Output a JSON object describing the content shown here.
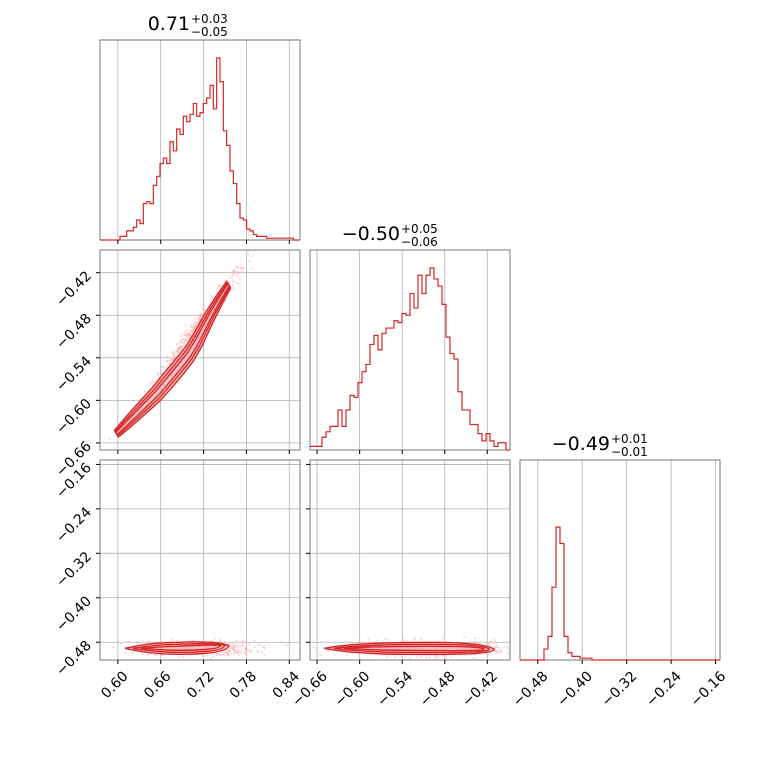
{
  "chart_data": {
    "type": "corner",
    "grid": true,
    "colors": {
      "series": "#d62728",
      "fill": "#f4b3b5",
      "scatter": "#f5b5b6",
      "grid": "#b0b0b0",
      "frame": "#777777"
    },
    "parameters": [
      {
        "title": {
          "median": "0.71",
          "plus": "+0.03",
          "minus": "−0.05"
        },
        "range": [
          0.575,
          0.855
        ],
        "ticks": [
          {
            "value": 0.6,
            "label": "0.60"
          },
          {
            "value": 0.66,
            "label": "0.66"
          },
          {
            "value": 0.72,
            "label": "0.72"
          },
          {
            "value": 0.78,
            "label": "0.78"
          },
          {
            "value": 0.84,
            "label": "0.84"
          }
        ],
        "histogram": [
          0,
          0,
          0,
          0,
          0,
          0,
          0.02,
          0.02,
          0.05,
          0.05,
          0.07,
          0.11,
          0.09,
          0.2,
          0.21,
          0.2,
          0.3,
          0.35,
          0.42,
          0.45,
          0.42,
          0.54,
          0.49,
          0.61,
          0.58,
          0.68,
          0.65,
          0.69,
          0.75,
          0.68,
          0.7,
          0.75,
          0.78,
          0.85,
          0.72,
          1.0,
          0.87,
          0.6,
          0.52,
          0.38,
          0.31,
          0.2,
          0.12,
          0.11,
          0.06,
          0.05,
          0.03,
          0.02,
          0.02,
          0.02,
          0.01,
          0.01,
          0.01,
          0.01,
          0.01,
          0.01,
          0.01,
          0.01,
          0,
          0
        ]
      },
      {
        "title": {
          "median": "−0.50",
          "plus": "+0.05",
          "minus": "−0.06"
        },
        "range": [
          -0.67,
          -0.388
        ],
        "ticks": [
          {
            "value": -0.66,
            "label": "−0.66"
          },
          {
            "value": -0.6,
            "label": "−0.60"
          },
          {
            "value": -0.54,
            "label": "−0.54"
          },
          {
            "value": -0.48,
            "label": "−0.48"
          },
          {
            "value": -0.42,
            "label": "−0.42"
          }
        ],
        "histogram": [
          0.02,
          0.02,
          0.02,
          0.07,
          0.1,
          0.13,
          0.13,
          0.22,
          0.13,
          0.22,
          0.3,
          0.29,
          0.37,
          0.43,
          0.47,
          0.58,
          0.63,
          0.55,
          0.64,
          0.67,
          0.67,
          0.71,
          0.7,
          0.75,
          0.74,
          0.86,
          0.78,
          0.96,
          0.86,
          0.96,
          1.0,
          0.94,
          0.9,
          0.8,
          0.62,
          0.53,
          0.5,
          0.32,
          0.22,
          0.22,
          0.14,
          0.14,
          0.09,
          0.05,
          0.09,
          0.05,
          0.02,
          0.04,
          0.04,
          0.0
        ]
      },
      {
        "title": {
          "median": "−0.49",
          "plus": "+0.01",
          "minus": "−0.01"
        },
        "range": [
          -0.512,
          -0.152
        ],
        "ticks": [
          {
            "value": -0.48,
            "label": "−0.48"
          },
          {
            "value": -0.4,
            "label": "−0.40"
          },
          {
            "value": -0.32,
            "label": "−0.32"
          },
          {
            "value": -0.24,
            "label": "−0.24"
          },
          {
            "value": -0.16,
            "label": "−0.16"
          }
        ],
        "histogram": [
          0,
          0,
          0,
          0,
          0,
          0,
          0.06,
          0.13,
          0.4,
          0.73,
          0.64,
          0.13,
          0.04,
          0.02,
          0.02,
          0.01,
          0.01,
          0.01,
          0,
          0,
          0,
          0,
          0,
          0,
          0,
          0,
          0,
          0,
          0,
          0,
          0,
          0,
          0,
          0,
          0,
          0,
          0,
          0,
          0,
          0,
          0,
          0,
          0,
          0,
          0,
          0,
          0,
          0,
          0,
          0
        ]
      }
    ],
    "contours_p1_p0": [
      {
        "x": 0.598,
        "y": -0.647
      },
      {
        "x": 0.61,
        "y": -0.635
      },
      {
        "x": 0.625,
        "y": -0.62
      },
      {
        "x": 0.64,
        "y": -0.605
      },
      {
        "x": 0.655,
        "y": -0.59
      },
      {
        "x": 0.67,
        "y": -0.572
      },
      {
        "x": 0.685,
        "y": -0.554
      },
      {
        "x": 0.7,
        "y": -0.535
      },
      {
        "x": 0.712,
        "y": -0.515
      },
      {
        "x": 0.722,
        "y": -0.495
      },
      {
        "x": 0.732,
        "y": -0.476
      },
      {
        "x": 0.744,
        "y": -0.455
      },
      {
        "x": 0.755,
        "y": -0.437
      }
    ],
    "contours_p2": {
      "center_y": -0.491,
      "p0_x": [
        0.61,
        0.755
      ],
      "p1_x": [
        -0.65,
        -0.41
      ]
    }
  }
}
